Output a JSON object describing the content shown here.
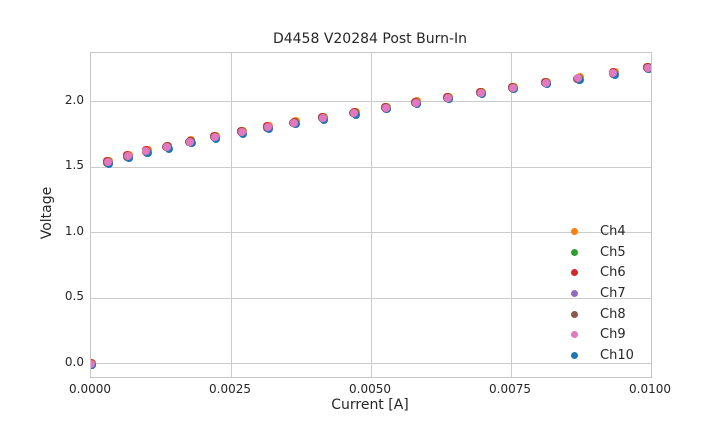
{
  "chart_data": {
    "type": "scatter",
    "title": "D4458 V20284 Post Burn-In",
    "xlabel": "Current [A]",
    "ylabel": "Voltage",
    "xlim": [
      0.0,
      0.01
    ],
    "ylim": [
      -0.1,
      2.37
    ],
    "grid": true,
    "legend_position": "lower right",
    "x_ticks": {
      "values": [
        0.0,
        0.0025,
        0.005,
        0.0075,
        0.01
      ],
      "labels": [
        "0.0000",
        "0.0025",
        "0.0050",
        "0.0075",
        "0.0100"
      ]
    },
    "y_ticks": {
      "values": [
        0.0,
        0.5,
        1.0,
        1.5,
        2.0
      ],
      "labels": [
        "0.0",
        "0.5",
        "1.0",
        "1.5",
        "2.0"
      ]
    },
    "x": [
      0.0,
      0.0003,
      0.00066,
      0.00099,
      0.00136,
      0.00177,
      0.00221,
      0.00269,
      0.00316,
      0.00363,
      0.00414,
      0.0047,
      0.00526,
      0.0058,
      0.00637,
      0.00696,
      0.00753,
      0.00812,
      0.0087,
      0.00933,
      0.00994
    ],
    "series": [
      {
        "name": "Ch4",
        "color": "#ff7f0e",
        "y": [
          0.0,
          1.539,
          1.582,
          1.62,
          1.654,
          1.694,
          1.73,
          1.768,
          1.804,
          1.84,
          1.875,
          1.913,
          1.952,
          1.992,
          2.028,
          2.066,
          2.105,
          2.143,
          2.176,
          2.216,
          2.257
        ]
      },
      {
        "name": "Ch5",
        "color": "#2ca02c",
        "y": [
          0.0,
          1.539,
          1.582,
          1.62,
          1.654,
          1.694,
          1.73,
          1.768,
          1.804,
          1.84,
          1.875,
          1.913,
          1.952,
          1.992,
          2.028,
          2.066,
          2.105,
          2.143,
          2.176,
          2.216,
          2.257
        ]
      },
      {
        "name": "Ch6",
        "color": "#d62728",
        "y": [
          0.0,
          1.539,
          1.582,
          1.62,
          1.654,
          1.694,
          1.73,
          1.768,
          1.804,
          1.84,
          1.875,
          1.913,
          1.952,
          1.992,
          2.028,
          2.066,
          2.105,
          2.143,
          2.176,
          2.216,
          2.257
        ]
      },
      {
        "name": "Ch7",
        "color": "#9467bd",
        "y": [
          0.0,
          1.539,
          1.582,
          1.62,
          1.654,
          1.694,
          1.73,
          1.768,
          1.804,
          1.84,
          1.875,
          1.913,
          1.952,
          1.992,
          2.028,
          2.066,
          2.105,
          2.143,
          2.176,
          2.216,
          2.257
        ]
      },
      {
        "name": "Ch8",
        "color": "#8c564b",
        "y": [
          0.0,
          1.539,
          1.582,
          1.62,
          1.654,
          1.694,
          1.73,
          1.768,
          1.804,
          1.84,
          1.875,
          1.913,
          1.952,
          1.992,
          2.028,
          2.066,
          2.105,
          2.143,
          2.176,
          2.216,
          2.257
        ]
      },
      {
        "name": "Ch9",
        "color": "#e377c2",
        "y": [
          0.0,
          1.539,
          1.582,
          1.62,
          1.654,
          1.694,
          1.73,
          1.768,
          1.804,
          1.84,
          1.875,
          1.913,
          1.952,
          1.992,
          2.028,
          2.066,
          2.105,
          2.143,
          2.176,
          2.216,
          2.257
        ]
      },
      {
        "name": "Ch10",
        "color": "#1f77b4",
        "y": [
          0.0,
          1.539,
          1.582,
          1.62,
          1.654,
          1.694,
          1.73,
          1.768,
          1.804,
          1.84,
          1.875,
          1.913,
          1.952,
          1.992,
          2.028,
          2.066,
          2.105,
          2.143,
          2.176,
          2.216,
          2.257
        ]
      }
    ]
  },
  "colors": {
    "grid": "#cccccc",
    "spine": "#c6c6c6",
    "text": "#262626",
    "background": "#ffffff"
  }
}
